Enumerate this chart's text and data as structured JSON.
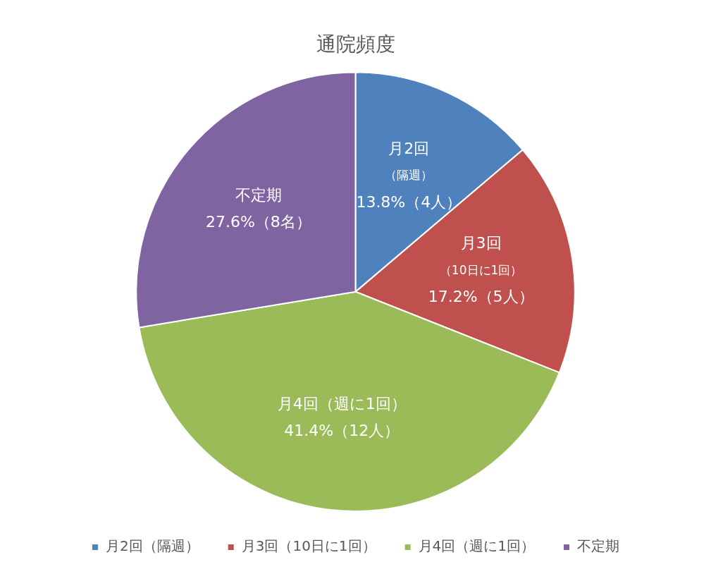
{
  "chart_data": {
    "type": "pie",
    "title": "通院頻度",
    "categories": [
      "月2回（隔週）",
      "月3回（10日に1回）",
      "月4回（週に1回）",
      "不定期"
    ],
    "values": [
      13.8,
      17.2,
      41.4,
      27.6
    ],
    "colors": [
      "#4f81bd",
      "#c0504d",
      "#9bbb59",
      "#8064a2"
    ],
    "value_labels": [
      "月2回（隔週）\n13.8%（4人）",
      "月3回（10日に1回）\n17.2%（5人）",
      "月4回（週に1回）\n41.4%（12人）",
      "不定期\n27.6%（8名）"
    ],
    "legend": "bottom"
  }
}
